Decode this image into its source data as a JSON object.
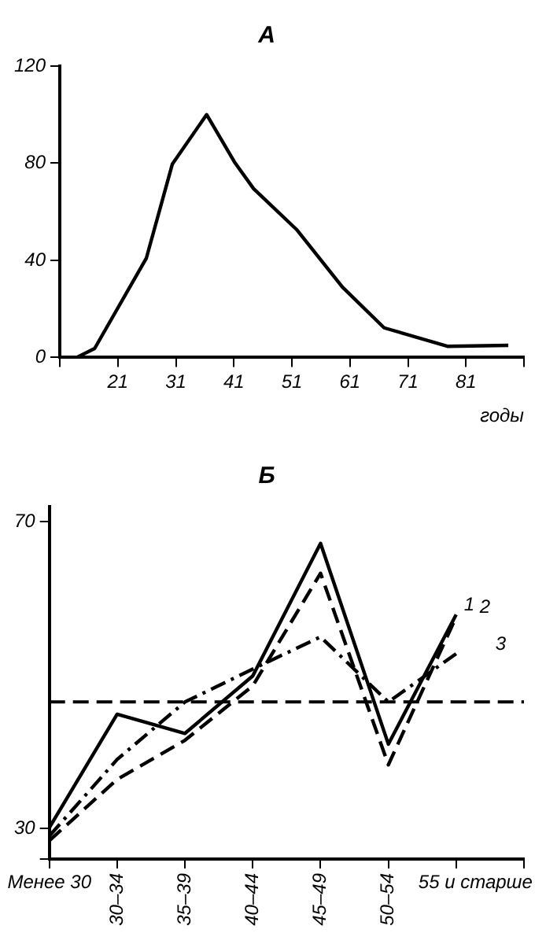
{
  "chart_data": [
    {
      "type": "line",
      "title": "А",
      "xlabel": "годы",
      "x": [
        13.9,
        17,
        25.9,
        30.4,
        36.3,
        41.1,
        44.4,
        51.8,
        59.7,
        66.9,
        77.8,
        88.3
      ],
      "values": [
        0,
        3.7,
        40.8,
        79.7,
        100,
        80.5,
        69.5,
        52.7,
        29,
        12.2,
        4.6,
        5
      ],
      "color": "#000000",
      "xlim": [
        11,
        91
      ],
      "xticks": [
        {
          "value": 11,
          "label": null
        },
        21,
        31,
        41,
        51,
        61,
        71,
        81,
        {
          "value": 91,
          "label": null
        }
      ],
      "ylim": [
        0,
        120
      ],
      "yticks": [
        0,
        40,
        80,
        120
      ],
      "grid": false,
      "legend": false,
      "marker": "none",
      "line_style": "solid"
    },
    {
      "type": "line",
      "title": "Б",
      "categories": [
        "Менее 30",
        "30–34",
        "35–39",
        "40–44",
        "45–49",
        "50–54",
        "55 и старше",
        null
      ],
      "series": [
        {
          "name": "1",
          "color": "#000000",
          "line_style": "solid",
          "values": [
            30.1,
            44.9,
            42.4,
            49.9,
            67.2,
            41,
            57.9,
            null
          ]
        },
        {
          "name": "2",
          "color": "#000000",
          "line_style": "dashed",
          "values": [
            28.4,
            36.4,
            41.5,
            48.6,
            63.3,
            38.3,
            57.6,
            null
          ]
        },
        {
          "name": "3",
          "color": "#000000",
          "line_style": "dashdot",
          "values": [
            29,
            39,
            46.5,
            50.8,
            55,
            46.5,
            52.8,
            null
          ]
        }
      ],
      "ylim": [
        26,
        72
      ],
      "yticks": [
        {
          "value": 26,
          "label": null
        },
        30,
        70
      ],
      "grid": false,
      "legend": false,
      "marker": "none",
      "ref_lines": [
        {
          "axis": "y",
          "value": 46.5,
          "color": "#000000",
          "line_style": "dashed"
        }
      ]
    }
  ]
}
